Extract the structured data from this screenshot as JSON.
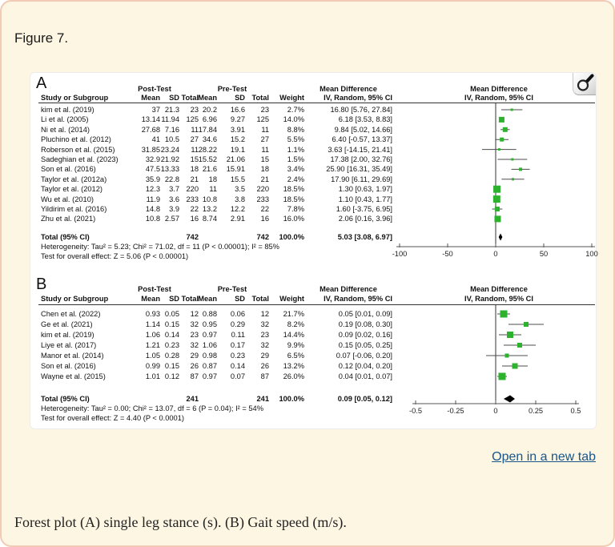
{
  "figure": {
    "label": "Figure 7.",
    "open_in_new_tab": "Open in a new tab",
    "caption": "Forest plot (A) single leg stance (s). (B) Gait speed (m/s).",
    "magnifier_icon": "magnifying-glass"
  },
  "colors": {
    "marker_green": "#2db22d",
    "diamond_black": "#000000",
    "ci_line": "#4d4d4d",
    "link_blue": "#19568c",
    "page_bg": "#fdf6e2",
    "page_border": "#f2cab5"
  },
  "chart_data": [
    {
      "type": "forest",
      "panel_letter": "A",
      "group_headers": {
        "post": "Post-Test",
        "pre": "Pre-Test",
        "md": "Mean Difference",
        "md_plot": "Mean Difference"
      },
      "col_headers": {
        "study": "Study or Subgroup",
        "mean": "Mean",
        "sd": "SD",
        "total": "Total",
        "weight": "Weight",
        "ci": "IV, Random, 95% CI",
        "ci_plot": "IV, Random, 95% CI"
      },
      "studies": [
        {
          "name": "kim et al. (2019)",
          "post": [
            "37",
            "21.3",
            "23"
          ],
          "pre": [
            "20.2",
            "16.6",
            "23"
          ],
          "weight": "2.7%",
          "w": 2.7,
          "md": 16.8,
          "lo": 5.76,
          "hi": 27.84,
          "md_text": "16.80 [5.76, 27.84]"
        },
        {
          "name": "Li et al. (2005)",
          "post": [
            "13.14",
            "11.94",
            "125"
          ],
          "pre": [
            "6.96",
            "9.27",
            "125"
          ],
          "weight": "14.0%",
          "w": 14.0,
          "md": 6.18,
          "lo": 3.53,
          "hi": 8.83,
          "md_text": "6.18 [3.53, 8.83]"
        },
        {
          "name": "Ni et al. (2014)",
          "post": [
            "27.68",
            "7.16",
            "11"
          ],
          "pre": [
            "17.84",
            "3.91",
            "11"
          ],
          "weight": "8.8%",
          "w": 8.8,
          "md": 9.84,
          "lo": 5.02,
          "hi": 14.66,
          "md_text": "9.84 [5.02, 14.66]"
        },
        {
          "name": "Pluchino et al. (2012)",
          "post": [
            "41",
            "10.5",
            "27"
          ],
          "pre": [
            "34.6",
            "15.2",
            "27"
          ],
          "weight": "5.5%",
          "w": 5.5,
          "md": 6.4,
          "lo": -0.57,
          "hi": 13.37,
          "md_text": "6.40 [-0.57, 13.37]"
        },
        {
          "name": "Roberson et al. (2015)",
          "post": [
            "31.85",
            "23.24",
            "11"
          ],
          "pre": [
            "28.22",
            "19.1",
            "11"
          ],
          "weight": "1.1%",
          "w": 1.1,
          "md": 3.63,
          "lo": -14.15,
          "hi": 21.41,
          "md_text": "3.63 [-14.15, 21.41]"
        },
        {
          "name": "Sadeghian et al. (2023)",
          "post": [
            "32.9",
            "21.92",
            "15"
          ],
          "pre": [
            "15.52",
            "21.06",
            "15"
          ],
          "weight": "1.5%",
          "w": 1.5,
          "md": 17.38,
          "lo": 2.0,
          "hi": 32.76,
          "md_text": "17.38 [2.00, 32.76]"
        },
        {
          "name": "Son et al. (2016)",
          "post": [
            "47.5",
            "13.33",
            "18"
          ],
          "pre": [
            "21.6",
            "15.91",
            "18"
          ],
          "weight": "3.4%",
          "w": 3.4,
          "md": 25.9,
          "lo": 16.31,
          "hi": 35.49,
          "md_text": "25.90 [16.31, 35.49]"
        },
        {
          "name": "Taylor et al. (2012a)",
          "post": [
            "35.9",
            "22.8",
            "21"
          ],
          "pre": [
            "18",
            "15.5",
            "21"
          ],
          "weight": "2.4%",
          "w": 2.4,
          "md": 17.9,
          "lo": 6.11,
          "hi": 29.69,
          "md_text": "17.90 [6.11, 29.69]"
        },
        {
          "name": "Taylor et al. (2012)",
          "post": [
            "12.3",
            "3.7",
            "220"
          ],
          "pre": [
            "11",
            "3.5",
            "220"
          ],
          "weight": "18.5%",
          "w": 18.5,
          "md": 1.3,
          "lo": 0.63,
          "hi": 1.97,
          "md_text": "1.30 [0.63, 1.97]"
        },
        {
          "name": "Wu et al. (2010)",
          "post": [
            "11.9",
            "3.6",
            "233"
          ],
          "pre": [
            "10.8",
            "3.8",
            "233"
          ],
          "weight": "18.5%",
          "w": 18.5,
          "md": 1.1,
          "lo": 0.43,
          "hi": 1.77,
          "md_text": "1.10 [0.43, 1.77]"
        },
        {
          "name": "Yildirim et al. (2016)",
          "post": [
            "14.8",
            "3.9",
            "22"
          ],
          "pre": [
            "13.2",
            "12.2",
            "22"
          ],
          "weight": "7.8%",
          "w": 7.8,
          "md": 1.6,
          "lo": -3.75,
          "hi": 6.95,
          "md_text": "1.60 [-3.75, 6.95]"
        },
        {
          "name": "Zhu et al. (2021)",
          "post": [
            "10.8",
            "2.57",
            "16"
          ],
          "pre": [
            "8.74",
            "2.91",
            "16"
          ],
          "weight": "16.0%",
          "w": 16.0,
          "md": 2.06,
          "lo": 0.16,
          "hi": 3.96,
          "md_text": "2.06 [0.16, 3.96]"
        }
      ],
      "total": {
        "label": "Total (95% CI)",
        "post_total": "742",
        "pre_total": "742",
        "weight": "100.0%",
        "md": 5.03,
        "lo": 3.08,
        "hi": 6.97,
        "md_text": "5.03 [3.08, 6.97]"
      },
      "heterogeneity": "Heterogeneity: Tau² = 5.23; Chi² = 71.02, df = 11 (P < 0.00001); I² = 85%",
      "overall_test": "Test for overall effect: Z = 5.06 (P < 0.00001)",
      "axis": {
        "min": -100,
        "max": 100,
        "ticks": [
          -100,
          -50,
          0,
          50,
          100
        ],
        "tick_labels": [
          "-100",
          "-50",
          "0",
          "50",
          "100"
        ]
      }
    },
    {
      "type": "forest",
      "panel_letter": "B",
      "group_headers": {
        "post": "Post-Test",
        "pre": "Pre-Test",
        "md": "Mean Difference",
        "md_plot": "Mean Difference"
      },
      "col_headers": {
        "study": "Study or Subgroup",
        "mean": "Mean",
        "sd": "SD",
        "total": "Total",
        "weight": "Weight",
        "ci": "IV, Random, 95% CI",
        "ci_plot": "IV, Random, 95% CI"
      },
      "studies": [
        {
          "name": "Chen et al. (2022)",
          "post": [
            "0.93",
            "0.05",
            "12"
          ],
          "pre": [
            "0.88",
            "0.06",
            "12"
          ],
          "weight": "21.7%",
          "w": 21.7,
          "md": 0.05,
          "lo": 0.01,
          "hi": 0.09,
          "md_text": "0.05 [0.01, 0.09]"
        },
        {
          "name": "Ge et al. (2021)",
          "post": [
            "1.14",
            "0.15",
            "32"
          ],
          "pre": [
            "0.95",
            "0.29",
            "32"
          ],
          "weight": "8.2%",
          "w": 8.2,
          "md": 0.19,
          "lo": 0.08,
          "hi": 0.3,
          "md_text": "0.19 [0.08, 0.30]"
        },
        {
          "name": "kim et al. (2019)",
          "post": [
            "1.06",
            "0.14",
            "23"
          ],
          "pre": [
            "0.97",
            "0.11",
            "23"
          ],
          "weight": "14.4%",
          "w": 14.4,
          "md": 0.09,
          "lo": 0.02,
          "hi": 0.16,
          "md_text": "0.09 [0.02, 0.16]"
        },
        {
          "name": "Liye et al. (2017)",
          "post": [
            "1.21",
            "0.23",
            "32"
          ],
          "pre": [
            "1.06",
            "0.17",
            "32"
          ],
          "weight": "9.9%",
          "w": 9.9,
          "md": 0.15,
          "lo": 0.05,
          "hi": 0.25,
          "md_text": "0.15 [0.05, 0.25]"
        },
        {
          "name": "Manor et al. (2014)",
          "post": [
            "1.05",
            "0.28",
            "29"
          ],
          "pre": [
            "0.98",
            "0.23",
            "29"
          ],
          "weight": "6.5%",
          "w": 6.5,
          "md": 0.07,
          "lo": -0.06,
          "hi": 0.2,
          "md_text": "0.07 [-0.06, 0.20]"
        },
        {
          "name": "Son et al. (2016)",
          "post": [
            "0.99",
            "0.15",
            "26"
          ],
          "pre": [
            "0.87",
            "0.14",
            "26"
          ],
          "weight": "13.2%",
          "w": 13.2,
          "md": 0.12,
          "lo": 0.04,
          "hi": 0.2,
          "md_text": "0.12 [0.04, 0.20]"
        },
        {
          "name": "Wayne et al. (2015)",
          "post": [
            "1.01",
            "0.12",
            "87"
          ],
          "pre": [
            "0.97",
            "0.07",
            "87"
          ],
          "weight": "26.0%",
          "w": 26.0,
          "md": 0.04,
          "lo": 0.01,
          "hi": 0.07,
          "md_text": "0.04 [0.01, 0.07]"
        }
      ],
      "total": {
        "label": "Total (95% CI)",
        "post_total": "241",
        "pre_total": "241",
        "weight": "100.0%",
        "md": 0.09,
        "lo": 0.05,
        "hi": 0.12,
        "md_text": "0.09 [0.05, 0.12]"
      },
      "heterogeneity": "Heterogeneity: Tau² = 0.00; Chi² = 13.07, df = 6 (P = 0.04); I² = 54%",
      "overall_test": "Test for overall effect: Z = 4.40 (P < 0.0001)",
      "axis": {
        "min": -0.5,
        "max": 0.5,
        "ticks": [
          -0.5,
          -0.25,
          0,
          0.25,
          0.5
        ],
        "tick_labels": [
          "-0.5",
          "-0.25",
          "0",
          "0.25",
          "0.5"
        ]
      }
    }
  ]
}
